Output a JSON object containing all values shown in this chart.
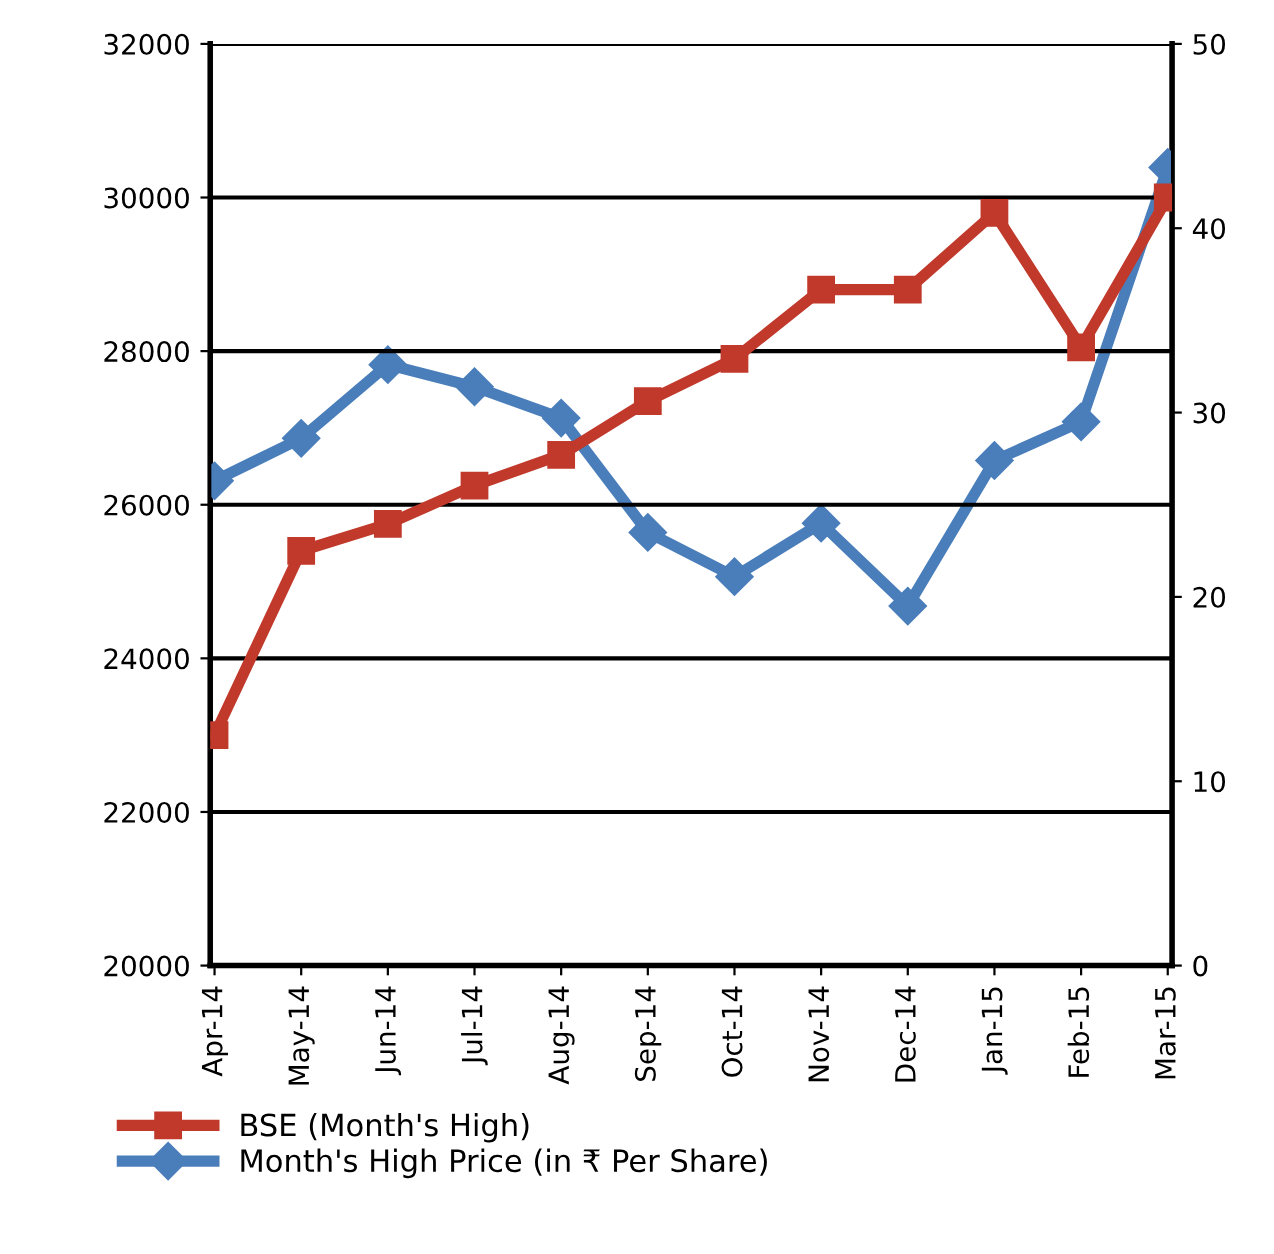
{
  "chart_data": {
    "type": "line",
    "categories": [
      "Apr-14",
      "May-14",
      "Jun-14",
      "Jul-14",
      "Aug-14",
      "Sep-14",
      "Oct-14",
      "Nov-14",
      "Dec-14",
      "Jan-15",
      "Feb-15",
      "Mar-15"
    ],
    "series": [
      {
        "name": "BSE (Month's High)",
        "color": "#c0392b",
        "marker": "square",
        "values": [
          23000,
          25400,
          25750,
          26250,
          26650,
          27350,
          27900,
          28800,
          28800,
          29800,
          28050,
          30000
        ]
      },
      {
        "name": "Month's High Price (in ₹ Per Share)",
        "color": "#4a7ebb",
        "marker": "diamond",
        "axis": "y2",
        "values": [
          26.3,
          28.6,
          32.6,
          31.4,
          29.7,
          23.5,
          21.1,
          24.0,
          19.5,
          27.4,
          29.5,
          43.3
        ]
      }
    ],
    "ylim": [
      20000,
      32000
    ],
    "yticks": [
      20000,
      22000,
      24000,
      26000,
      28000,
      30000,
      32000
    ],
    "y2lim": [
      0,
      50
    ],
    "y2ticks": [
      0,
      10,
      20,
      30,
      40,
      50
    ],
    "grid": "y",
    "legend": "bottom"
  }
}
